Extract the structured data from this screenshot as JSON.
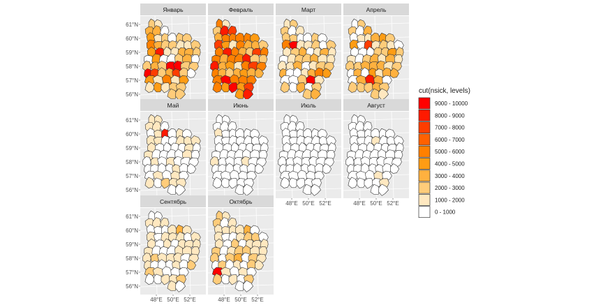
{
  "facets": [
    {
      "title": "Январь",
      "intensity": 0.45,
      "hot": 0.35
    },
    {
      "title": "Февраль",
      "intensity": 0.75,
      "hot": 0.9
    },
    {
      "title": "Март",
      "intensity": 0.45,
      "hot": 0.3
    },
    {
      "title": "Апрель",
      "intensity": 0.45,
      "hot": 0.3
    },
    {
      "title": "Май",
      "intensity": 0.18,
      "hot": 0.05
    },
    {
      "title": "Июнь",
      "intensity": 0.12,
      "hot": 0.0
    },
    {
      "title": "Июль",
      "intensity": 0.06,
      "hot": 0.0
    },
    {
      "title": "Август",
      "intensity": 0.12,
      "hot": 0.0
    },
    {
      "title": "Сентябрь",
      "intensity": 0.28,
      "hot": 0.1
    },
    {
      "title": "Октябрь",
      "intensity": 0.32,
      "hot": 0.12
    }
  ],
  "lat_ticks": [
    "61°N",
    "60°N",
    "59°N",
    "58°N",
    "57°N",
    "56°N"
  ],
  "lon_ticks": [
    "48°E",
    "50°E",
    "52°E"
  ],
  "legend": {
    "title": "cut(nsick, levels)",
    "items": [
      {
        "label": "9000 - 10000",
        "color": "#ff0000"
      },
      {
        "label": "8000 - 9000",
        "color": "#ff1a00"
      },
      {
        "label": "7000 - 8000",
        "color": "#ff3d00"
      },
      {
        "label": "6000 - 7000",
        "color": "#ff6100"
      },
      {
        "label": "5000 - 6000",
        "color": "#ff8000"
      },
      {
        "label": "4000 - 5000",
        "color": "#ff9c14"
      },
      {
        "label": "3000 - 4000",
        "color": "#ffb13f"
      },
      {
        "label": "2000 - 3000",
        "color": "#ffcc7a"
      },
      {
        "label": "1000 - 2000",
        "color": "#ffe8c0"
      },
      {
        "label": "0 - 1000",
        "color": "#ffffff"
      }
    ]
  },
  "colors": {
    "panel_bg": "#ebebeb",
    "strip_bg": "#d9d9d9",
    "border": "#333333",
    "grid": "#ffffff"
  }
}
